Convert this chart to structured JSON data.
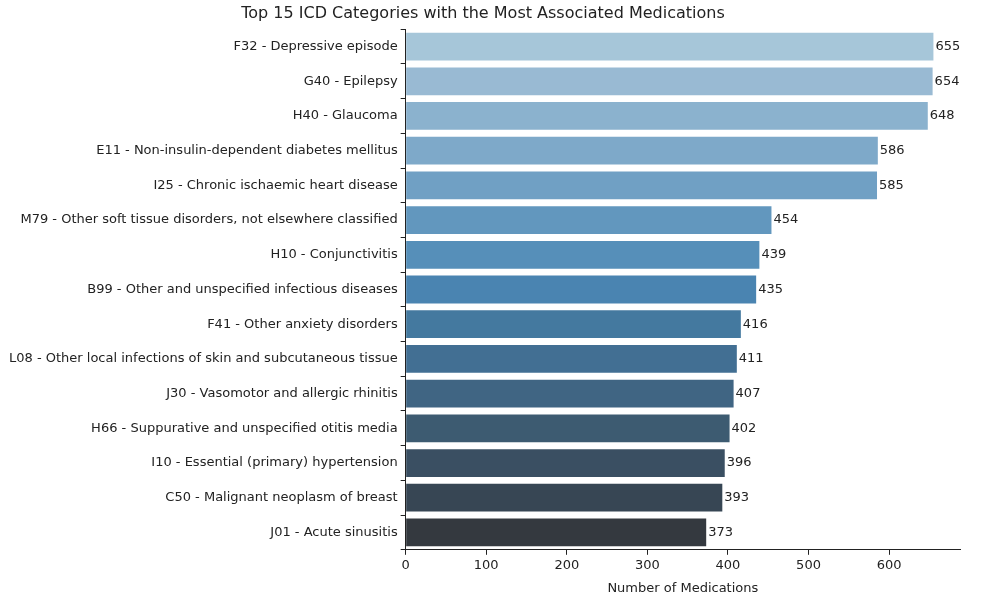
{
  "chart_data": {
    "type": "bar",
    "orientation": "horizontal",
    "title": "Top 15 ICD Categories with the Most Associated Medications",
    "xlabel": "Number of Medications",
    "categories": [
      "F32 - Depressive episode",
      "G40 - Epilepsy",
      "H40 - Glaucoma",
      "E11 - Non-insulin-dependent diabetes mellitus",
      "I25 - Chronic ischaemic heart disease",
      "M79 - Other soft tissue disorders, not elsewhere classified",
      "H10 - Conjunctivitis",
      "B99 - Other and unspecified infectious diseases",
      "F41 - Other anxiety disorders",
      "L08 - Other local infections of skin and subcutaneous tissue",
      "J30 - Vasomotor and allergic rhinitis",
      "H66 - Suppurative and unspecified otitis media",
      "I10 - Essential (primary) hypertension",
      "C50 - Malignant neoplasm of breast",
      "J01 - Acute sinusitis"
    ],
    "values": [
      655,
      654,
      648,
      586,
      585,
      454,
      439,
      435,
      416,
      411,
      407,
      402,
      396,
      393,
      373
    ],
    "colors": [
      "#a6c6d9",
      "#99bad3",
      "#8bb2ce",
      "#7ea9c9",
      "#70a0c4",
      "#6297be",
      "#568fb9",
      "#4a84b1",
      "#44799f",
      "#426f93",
      "#406583",
      "#3d5b71",
      "#3a4f62",
      "#374654",
      "#34393f"
    ],
    "xlim": [
      0,
      688
    ],
    "xticks": [
      0,
      100,
      200,
      300,
      400,
      500,
      600
    ],
    "data_labels": true,
    "grid": false,
    "legend": false
  }
}
